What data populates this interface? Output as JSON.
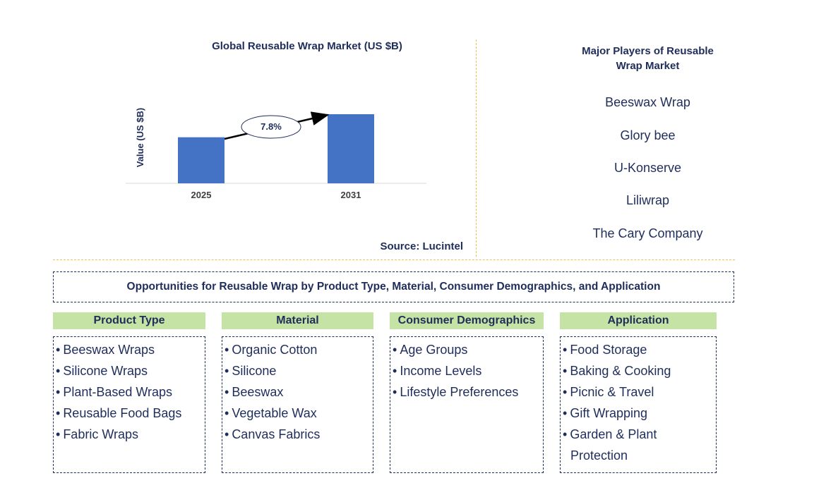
{
  "chart_data": {
    "type": "bar",
    "title": "Global Reusable Wrap Market (US $B)",
    "ylabel": "Value (US $B)",
    "xlabel": "",
    "categories": [
      "2025",
      "2031"
    ],
    "values": [
      0.64,
      0.96
    ],
    "annotation": "7.8%",
    "bar_color": "#4472c4",
    "grid": false
  },
  "source": "Source: Lucintel",
  "players": {
    "title_line1": "Major Players of Reusable",
    "title_line2": "Wrap Market",
    "items": [
      "Beeswax Wrap",
      "Glory bee",
      "U-Konserve",
      "Liliwrap",
      "The Cary Company"
    ]
  },
  "opportunities_title": "Opportunities for Reusable Wrap by Product Type, Material, Consumer Demographics, and Application",
  "categories": [
    {
      "header": "Product Type",
      "items": [
        "Beeswax Wraps",
        "Silicone Wraps",
        "Plant-Based Wraps",
        "Reusable Food Bags",
        "Fabric Wraps"
      ]
    },
    {
      "header": "Material",
      "items": [
        "Organic Cotton",
        "Silicone",
        "Beeswax",
        "Vegetable Wax",
        "Canvas Fabrics"
      ]
    },
    {
      "header": "Consumer Demographics",
      "items": [
        "Age Groups",
        "Income Levels",
        "Lifestyle Preferences"
      ]
    },
    {
      "header": "Application",
      "items": [
        "Food Storage",
        "Baking & Cooking",
        "Picnic & Travel",
        "Gift Wrapping",
        "Garden & Plant"
      ],
      "continuation": "Protection"
    }
  ],
  "colors": {
    "text": "#1f2d5a",
    "header_bg": "#c5e3a4",
    "divider": "#f0c24b"
  }
}
